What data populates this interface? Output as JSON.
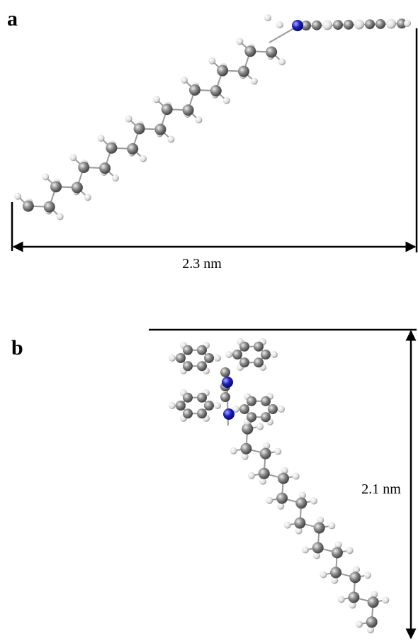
{
  "panels": [
    {
      "label": "a",
      "dimension": "2.3 nm"
    },
    {
      "label": "b",
      "dimension": "2.1 nm"
    }
  ]
}
